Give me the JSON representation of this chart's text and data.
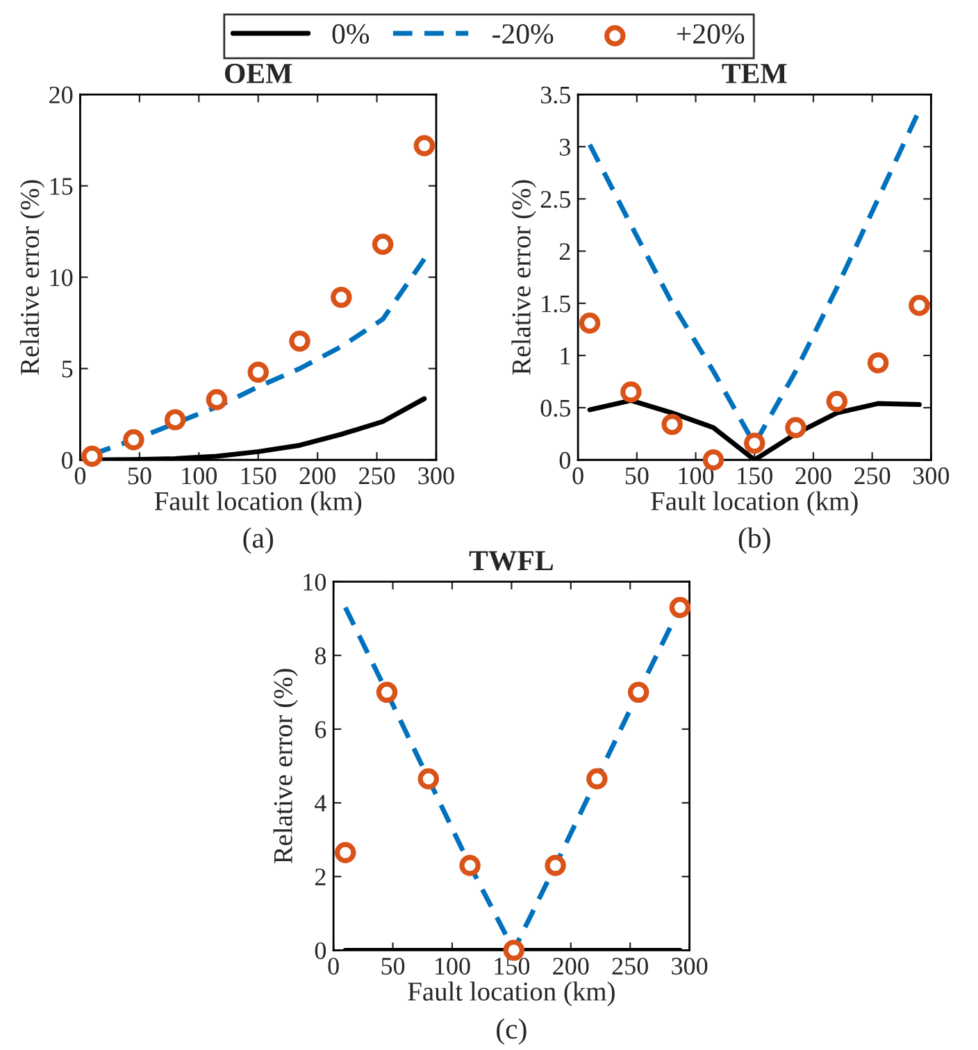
{
  "chart_data": [
    {
      "type": "line",
      "title": "OEM",
      "xlabel": "Fault location (km)",
      "ylabel": "Relative error (%)",
      "annotations": [
        "(a)"
      ],
      "legend": "top",
      "grid": false,
      "xlim": [
        0,
        300
      ],
      "xticks": [
        0,
        50,
        100,
        150,
        200,
        250,
        300
      ],
      "ylim": [
        0,
        20
      ],
      "yticks": [
        0,
        5,
        10,
        15,
        20
      ],
      "series": [
        {
          "name": "0%",
          "line_style": "solid",
          "color": "#000000",
          "x": [
            10,
            45,
            80,
            115,
            150,
            185,
            220,
            255,
            290
          ],
          "values": [
            0,
            0.02,
            0.07,
            0.2,
            0.45,
            0.8,
            1.4,
            2.1,
            3.35
          ]
        },
        {
          "name": "-20%",
          "line_style": "dashed",
          "color": "#0072bd",
          "x": [
            10,
            45,
            80,
            115,
            150,
            185,
            220,
            255,
            290
          ],
          "values": [
            0.3,
            1.1,
            2.0,
            2.9,
            4.0,
            5.0,
            6.2,
            7.7,
            11.0
          ]
        },
        {
          "name": "+20%",
          "type": "scatter",
          "marker": "circle",
          "color": "#d95319",
          "x": [
            10,
            45,
            80,
            115,
            150,
            185,
            220,
            255,
            290
          ],
          "values": [
            0.2,
            1.1,
            2.2,
            3.3,
            4.8,
            6.5,
            8.9,
            11.8,
            17.2
          ]
        }
      ]
    },
    {
      "type": "line",
      "title": "TEM",
      "xlabel": "Fault location (km)",
      "ylabel": "Relative error (%)",
      "annotations": [
        "(b)"
      ],
      "grid": false,
      "xlim": [
        0,
        300
      ],
      "xticks": [
        0,
        50,
        100,
        150,
        200,
        250,
        300
      ],
      "ylim": [
        0,
        3.5
      ],
      "yticks": [
        0,
        0.5,
        1,
        1.5,
        2,
        2.5,
        3,
        3.5
      ],
      "series": [
        {
          "line_style": "solid",
          "color": "#000000",
          "x": [
            10,
            45,
            80,
            115,
            150,
            185,
            220,
            255,
            290
          ],
          "values": [
            0.48,
            0.57,
            0.45,
            0.31,
            0,
            0.25,
            0.45,
            0.54,
            0.53
          ]
        },
        {
          "line_style": "dashed",
          "color": "#0072bd",
          "x": [
            10,
            45,
            80,
            115,
            150,
            185,
            220,
            255,
            290
          ],
          "values": [
            3.02,
            2.25,
            1.5,
            0.85,
            0.15,
            0.85,
            1.65,
            2.5,
            3.35
          ]
        },
        {
          "type": "scatter",
          "marker": "circle",
          "color": "#d95319",
          "x": [
            10,
            45,
            80,
            115,
            150,
            185,
            220,
            255,
            290
          ],
          "values": [
            1.31,
            0.65,
            0.34,
            0.0,
            0.16,
            0.31,
            0.56,
            0.93,
            1.48
          ]
        }
      ]
    },
    {
      "type": "line",
      "title": "TWFL",
      "xlabel": "Fault location (km)",
      "ylabel": "Relative error (%)",
      "annotations": [
        "(c)"
      ],
      "grid": false,
      "xlim": [
        0,
        300
      ],
      "xticks": [
        0,
        50,
        100,
        150,
        200,
        250,
        300
      ],
      "ylim": [
        0,
        10
      ],
      "yticks": [
        0,
        2,
        4,
        6,
        8,
        10
      ],
      "series": [
        {
          "line_style": "solid",
          "color": "#000000",
          "x": [
            10,
            45,
            80,
            115,
            152,
            187,
            222,
            257,
            292
          ],
          "values": [
            0,
            0,
            0,
            0,
            0,
            0,
            0,
            0,
            0
          ]
        },
        {
          "line_style": "dashed",
          "color": "#0072bd",
          "x": [
            10,
            45,
            80,
            115,
            152,
            187,
            222,
            257,
            292
          ],
          "values": [
            9.3,
            7.0,
            4.65,
            2.3,
            0,
            2.3,
            4.65,
            7.0,
            9.3
          ]
        },
        {
          "type": "scatter",
          "marker": "circle",
          "color": "#d95319",
          "x": [
            10,
            45,
            80,
            115,
            152,
            187,
            222,
            257,
            292
          ],
          "values": [
            2.65,
            7.0,
            4.65,
            2.3,
            0,
            2.3,
            4.65,
            7.0,
            9.3
          ]
        }
      ]
    }
  ]
}
